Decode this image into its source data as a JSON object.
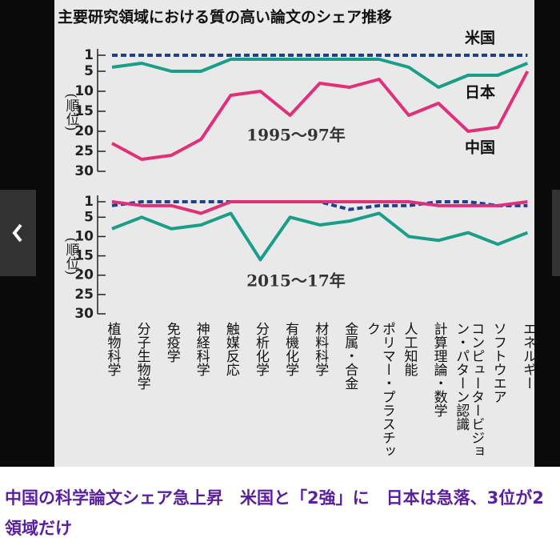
{
  "chart_data": [
    {
      "type": "line",
      "title": "主要研究領域における質の高い論文のシェア推移",
      "subtitle": "1995～97年",
      "y_label": "(順位)",
      "ylim": [
        1,
        30
      ],
      "y_inverted": true,
      "yticks": [
        1,
        5,
        10,
        15,
        20,
        25,
        30
      ],
      "series": [
        {
          "name": "米国",
          "color": "#1f3f8f",
          "dashed": true,
          "values": [
            1,
            1,
            1,
            1,
            1,
            1,
            1,
            1,
            1,
            1,
            1,
            1,
            1,
            1,
            1
          ]
        },
        {
          "name": "日本",
          "color": "#1a9e8a",
          "values": [
            4,
            3,
            5,
            5,
            2,
            2,
            2,
            2,
            2,
            2,
            4,
            9,
            6,
            6,
            3
          ]
        },
        {
          "name": "中国",
          "color": "#e0307a",
          "values": [
            23,
            27,
            26,
            22,
            11,
            10,
            16,
            8,
            9,
            7,
            16,
            13,
            20,
            19,
            5
          ]
        }
      ]
    },
    {
      "type": "line",
      "subtitle": "2015～17年",
      "y_label": "(順位)",
      "ylim": [
        1,
        30
      ],
      "y_inverted": true,
      "yticks": [
        1,
        5,
        10,
        15,
        20,
        25,
        30
      ],
      "categories": [
        "植物科学",
        "分子生物学",
        "免疫学",
        "神経科学",
        "触媒反応",
        "分析化学",
        "有機化学",
        "材料科学",
        "金属・合金",
        "ポリマー・プラスチック",
        "人工知能",
        "計算理論・数学",
        "コンピュータービジョン・パターン認識",
        "ソフトウエア",
        "エネルギー"
      ],
      "series": [
        {
          "color": "#1f3f8f",
          "dashed": true,
          "values": [
            2,
            1,
            1,
            1,
            1,
            1,
            1,
            1,
            3,
            2,
            2,
            1,
            1,
            2,
            2
          ]
        },
        {
          "color": "#1a9e8a",
          "values": [
            8,
            5,
            8,
            7,
            4,
            16,
            5,
            7,
            6,
            4,
            10,
            11,
            9,
            12,
            9
          ]
        },
        {
          "color": "#e0307a",
          "values": [
            1,
            2,
            2,
            4,
            1,
            1,
            1,
            1,
            1,
            1,
            1,
            2,
            2,
            2,
            1
          ]
        }
      ]
    }
  ],
  "caption": "中国の科学論文シェア急上昇　米国と「2強」に　日本は急落、3位が2領域だけ"
}
